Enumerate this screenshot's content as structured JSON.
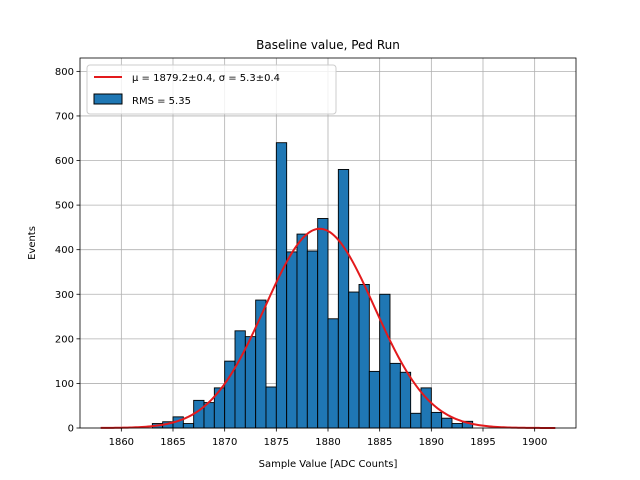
{
  "chart_data": {
    "type": "bar",
    "title": "Baseline value, Ped Run",
    "xlabel": "Sample Value [ADC Counts]",
    "ylabel": "Events",
    "xlim": [
      1856,
      1904
    ],
    "ylim": [
      0,
      830
    ],
    "x_ticks": [
      1860,
      1865,
      1870,
      1875,
      1880,
      1885,
      1890,
      1895,
      1900
    ],
    "y_ticks": [
      0,
      100,
      200,
      300,
      400,
      500,
      600,
      700,
      800
    ],
    "grid": true,
    "legend_position": "upper-left",
    "bin_width": 1,
    "bins_left": [
      1858,
      1859,
      1860,
      1861,
      1862,
      1863,
      1864,
      1865,
      1866,
      1867,
      1868,
      1869,
      1870,
      1871,
      1872,
      1873,
      1874,
      1875,
      1876,
      1877,
      1878,
      1879,
      1880,
      1881,
      1882,
      1883,
      1884,
      1885,
      1886,
      1887,
      1888,
      1889,
      1890,
      1891,
      1892,
      1893,
      1894,
      1895,
      1896,
      1897,
      1898,
      1899,
      1900,
      1901
    ],
    "counts": [
      0,
      0,
      0,
      0,
      0,
      10,
      14,
      25,
      10,
      62,
      57,
      90,
      150,
      218,
      205,
      287,
      92,
      640,
      395,
      435,
      397,
      470,
      245,
      580,
      305,
      322,
      127,
      300,
      145,
      125,
      33,
      90,
      35,
      22,
      10,
      15,
      0,
      0,
      0,
      0,
      0,
      0,
      0,
      0
    ],
    "bar_color": "#1f77b4",
    "edge_color": "#000000",
    "fit": {
      "type": "gaussian",
      "color": "#e31a1c",
      "mu": 1879.2,
      "sigma": 5.3,
      "amplitude": 447,
      "x_range": [
        1858,
        1902
      ],
      "label": "μ = 1879.2±0.4, σ = 5.3±0.4"
    },
    "legend": [
      {
        "label": "μ = 1879.2±0.4, σ = 5.3±0.4",
        "kind": "line",
        "color": "#e31a1c"
      },
      {
        "label": "RMS = 5.35",
        "kind": "patch",
        "color": "#1f77b4"
      }
    ]
  }
}
